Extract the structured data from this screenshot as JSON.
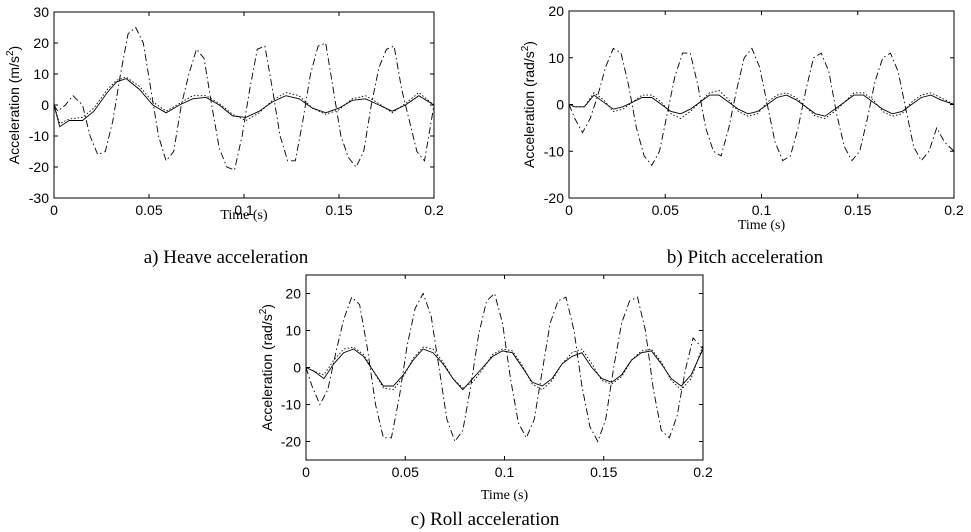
{
  "chart_data": [
    {
      "type": "line",
      "caption": "a) Heave acceleration",
      "xlabel": "Time (s)",
      "ylabel": "Acceleration (m/s",
      "ylabel_sup": "2",
      "ylabel_tail": ")",
      "xlim": [
        0,
        0.2
      ],
      "ylim": [
        -30,
        30
      ],
      "xticks": [
        0,
        0.05,
        0.1,
        0.15,
        0.2
      ],
      "xtick_labels": [
        "0",
        "0.05",
        "0.1",
        "0.15",
        "0.2"
      ],
      "yticks": [
        -30,
        -20,
        -10,
        0,
        10,
        20,
        30
      ],
      "ytick_labels": [
        "-30",
        "-20",
        "-10",
        "0",
        "10",
        "20",
        "30"
      ],
      "grid": false,
      "series": [
        {
          "style": "solid",
          "x": [
            0,
            0.003,
            0.008,
            0.015,
            0.021,
            0.028,
            0.033,
            0.038,
            0.045,
            0.052,
            0.059,
            0.066,
            0.073,
            0.08,
            0.087,
            0.094,
            0.101,
            0.108,
            0.115,
            0.122,
            0.129,
            0.136,
            0.143,
            0.15,
            0.157,
            0.164,
            0.171,
            0.178,
            0.185,
            0.192,
            0.2
          ],
          "y": [
            0,
            -7,
            -5,
            -5,
            -2,
            4,
            7.5,
            8.5,
            5,
            0,
            -2.5,
            0,
            2,
            2.5,
            0,
            -3.5,
            -4,
            -2,
            1,
            3,
            2,
            -1,
            -2.5,
            -1,
            1.5,
            2,
            0,
            -2,
            0,
            3,
            0
          ]
        },
        {
          "style": "dotted",
          "x": [
            0,
            0.003,
            0.008,
            0.015,
            0.021,
            0.028,
            0.033,
            0.038,
            0.045,
            0.052,
            0.059,
            0.066,
            0.073,
            0.08,
            0.087,
            0.094,
            0.101,
            0.108,
            0.115,
            0.122,
            0.129,
            0.136,
            0.143,
            0.15,
            0.157,
            0.164,
            0.171,
            0.178,
            0.185,
            0.192,
            0.2
          ],
          "y": [
            0,
            -6,
            -4.5,
            -4,
            -1,
            5,
            8,
            9,
            6,
            1,
            -2,
            0.5,
            3,
            3,
            0.5,
            -3,
            -5,
            -2.5,
            1.5,
            4,
            3,
            -1,
            -3,
            -1.5,
            2,
            3,
            0.5,
            -2.5,
            0.5,
            4,
            0
          ]
        },
        {
          "style": "dashdot",
          "x": [
            0,
            0.002,
            0.006,
            0.01,
            0.015,
            0.019,
            0.023,
            0.027,
            0.031,
            0.035,
            0.039,
            0.043,
            0.047,
            0.051,
            0.055,
            0.059,
            0.063,
            0.067,
            0.071,
            0.075,
            0.079,
            0.083,
            0.087,
            0.091,
            0.095,
            0.099,
            0.103,
            0.107,
            0.111,
            0.115,
            0.119,
            0.123,
            0.127,
            0.131,
            0.135,
            0.139,
            0.143,
            0.147,
            0.151,
            0.155,
            0.159,
            0.163,
            0.167,
            0.171,
            0.175,
            0.179,
            0.183,
            0.187,
            0.191,
            0.195,
            0.2
          ],
          "y": [
            0,
            -2,
            0,
            3,
            0,
            -10,
            -16,
            -15,
            -5,
            10,
            23,
            25,
            20,
            5,
            -10,
            -18,
            -15,
            0,
            10,
            18,
            15,
            0,
            -14,
            -20,
            -21,
            -10,
            5,
            18,
            19,
            5,
            -10,
            -18,
            -18,
            -5,
            10,
            19,
            20,
            5,
            -10,
            -17,
            -20,
            -15,
            0,
            12,
            18,
            19,
            5,
            -5,
            -15,
            -18,
            0
          ]
        }
      ]
    },
    {
      "type": "line",
      "caption": "b) Pitch acceleration",
      "xlabel": "Time (s)",
      "ylabel": "Acceleration (rad/s",
      "ylabel_sup": "2",
      "ylabel_tail": ")",
      "xlim": [
        0,
        0.2
      ],
      "ylim": [
        -20,
        20
      ],
      "xticks": [
        0,
        0.05,
        0.1,
        0.15,
        0.2
      ],
      "xtick_labels": [
        "0",
        "0.05",
        "0.1",
        "0.15",
        "0.2"
      ],
      "yticks": [
        -20,
        -10,
        0,
        10,
        20
      ],
      "ytick_labels": [
        "-20",
        "-10",
        "0",
        "10",
        "20"
      ],
      "grid": false,
      "series": [
        {
          "style": "solid",
          "x": [
            0,
            0.003,
            0.008,
            0.013,
            0.018,
            0.023,
            0.028,
            0.033,
            0.038,
            0.043,
            0.048,
            0.053,
            0.058,
            0.063,
            0.068,
            0.073,
            0.078,
            0.083,
            0.088,
            0.093,
            0.098,
            0.103,
            0.108,
            0.113,
            0.118,
            0.123,
            0.128,
            0.133,
            0.138,
            0.143,
            0.148,
            0.153,
            0.158,
            0.163,
            0.168,
            0.173,
            0.178,
            0.183,
            0.188,
            0.193,
            0.2
          ],
          "y": [
            0,
            -0.5,
            -0.5,
            2,
            0.5,
            -1,
            -0.5,
            0.5,
            1.5,
            1.5,
            0,
            -1.5,
            -2,
            -1,
            0.5,
            2,
            2,
            0.5,
            -1,
            -2,
            -1.5,
            0,
            1.5,
            2,
            1,
            -0.5,
            -2,
            -2.5,
            -1,
            0.5,
            2,
            2,
            0.5,
            -1,
            -2,
            -1.5,
            0,
            1.5,
            2,
            1,
            0
          ]
        },
        {
          "style": "dotted",
          "x": [
            0,
            0.003,
            0.008,
            0.013,
            0.018,
            0.023,
            0.028,
            0.033,
            0.038,
            0.043,
            0.048,
            0.053,
            0.058,
            0.063,
            0.068,
            0.073,
            0.078,
            0.083,
            0.088,
            0.093,
            0.098,
            0.103,
            0.108,
            0.113,
            0.118,
            0.123,
            0.128,
            0.133,
            0.138,
            0.143,
            0.148,
            0.153,
            0.158,
            0.163,
            0.168,
            0.173,
            0.178,
            0.183,
            0.188,
            0.193,
            0.2
          ],
          "y": [
            0,
            -0.5,
            -0.5,
            2.5,
            1,
            -1.5,
            -1,
            0.5,
            2,
            2,
            0.5,
            -2,
            -3,
            -1.5,
            0.5,
            2.5,
            3,
            1,
            -1.5,
            -2.5,
            -2,
            0.5,
            2,
            2.5,
            1.5,
            -0.5,
            -2.5,
            -3,
            -1.5,
            0.5,
            2.5,
            2.5,
            1,
            -1.5,
            -2.5,
            -2,
            0.5,
            2,
            2.5,
            1.5,
            0
          ]
        },
        {
          "style": "dashdot",
          "x": [
            0,
            0.003,
            0.007,
            0.011,
            0.015,
            0.019,
            0.023,
            0.027,
            0.031,
            0.035,
            0.039,
            0.043,
            0.047,
            0.051,
            0.055,
            0.059,
            0.063,
            0.067,
            0.071,
            0.075,
            0.079,
            0.083,
            0.087,
            0.091,
            0.095,
            0.099,
            0.103,
            0.107,
            0.111,
            0.115,
            0.119,
            0.123,
            0.127,
            0.131,
            0.135,
            0.139,
            0.143,
            0.147,
            0.151,
            0.155,
            0.159,
            0.163,
            0.167,
            0.171,
            0.175,
            0.179,
            0.183,
            0.187,
            0.191,
            0.195,
            0.2
          ],
          "y": [
            0,
            -3,
            -6,
            -3,
            2,
            8,
            12,
            11,
            4,
            -5,
            -11,
            -13,
            -10,
            -2,
            6,
            11,
            11,
            4,
            -5,
            -10,
            -11,
            -5,
            3,
            10,
            12,
            8,
            0,
            -8,
            -12,
            -11,
            -5,
            3,
            10,
            11,
            7,
            -2,
            -9,
            -12,
            -10,
            -3,
            5,
            10,
            11,
            7,
            -1,
            -9,
            -12,
            -10,
            -5,
            -8,
            -10
          ]
        }
      ]
    },
    {
      "type": "line",
      "caption": "c) Roll acceleration",
      "xlabel": "Time (s)",
      "ylabel": "Acceleration (rad/s",
      "ylabel_sup": "2",
      "ylabel_tail": ")",
      "xlim": [
        0,
        0.2
      ],
      "ylim": [
        -25,
        25
      ],
      "xticks": [
        0,
        0.05,
        0.1,
        0.15,
        0.2
      ],
      "xtick_labels": [
        "0",
        "0.05",
        "0.1",
        "0.15",
        "0.2"
      ],
      "yticks": [
        -20,
        -10,
        0,
        10,
        20
      ],
      "ytick_labels": [
        "-20",
        "-10",
        "0",
        "10",
        "20"
      ],
      "grid": false,
      "series": [
        {
          "style": "solid",
          "x": [
            0,
            0.004,
            0.009,
            0.014,
            0.019,
            0.024,
            0.029,
            0.034,
            0.039,
            0.044,
            0.049,
            0.054,
            0.059,
            0.064,
            0.069,
            0.074,
            0.079,
            0.084,
            0.089,
            0.094,
            0.099,
            0.104,
            0.109,
            0.114,
            0.119,
            0.124,
            0.129,
            0.134,
            0.139,
            0.144,
            0.149,
            0.154,
            0.159,
            0.164,
            0.169,
            0.174,
            0.179,
            0.184,
            0.189,
            0.194,
            0.2
          ],
          "y": [
            0,
            -1,
            -3,
            1,
            4,
            5,
            3,
            -1,
            -5,
            -5,
            -2,
            2,
            5,
            4,
            1,
            -3,
            -6,
            -3,
            0,
            3,
            4.5,
            4,
            0,
            -4,
            -5,
            -3,
            1,
            3,
            4,
            0,
            -3,
            -4,
            -2,
            2,
            4,
            4.5,
            1,
            -3,
            -5,
            -2,
            5
          ]
        },
        {
          "style": "dotted",
          "x": [
            0,
            0.004,
            0.009,
            0.014,
            0.019,
            0.024,
            0.029,
            0.034,
            0.039,
            0.044,
            0.049,
            0.054,
            0.059,
            0.064,
            0.069,
            0.074,
            0.079,
            0.084,
            0.089,
            0.094,
            0.099,
            0.104,
            0.109,
            0.114,
            0.119,
            0.124,
            0.129,
            0.134,
            0.139,
            0.144,
            0.149,
            0.154,
            0.159,
            0.164,
            0.169,
            0.174,
            0.179,
            0.184,
            0.189,
            0.194,
            0.2
          ],
          "y": [
            0,
            -1,
            -2,
            2,
            5,
            5.5,
            3.5,
            -1,
            -5.5,
            -6,
            -2.5,
            2.5,
            5.5,
            5,
            1.5,
            -3,
            -5.5,
            -4,
            -0.5,
            3.5,
            5,
            4.5,
            0.5,
            -4.5,
            -6,
            -3.5,
            1,
            4,
            5,
            1,
            -3.5,
            -4.5,
            -2.5,
            2,
            4.5,
            5,
            1.5,
            -3.5,
            -6,
            -3,
            6
          ]
        },
        {
          "style": "dashdot",
          "x": [
            0,
            0.003,
            0.007,
            0.011,
            0.015,
            0.019,
            0.023,
            0.027,
            0.031,
            0.035,
            0.039,
            0.043,
            0.047,
            0.051,
            0.055,
            0.059,
            0.063,
            0.067,
            0.071,
            0.075,
            0.079,
            0.083,
            0.087,
            0.091,
            0.095,
            0.099,
            0.103,
            0.107,
            0.111,
            0.115,
            0.119,
            0.123,
            0.127,
            0.131,
            0.135,
            0.139,
            0.143,
            0.147,
            0.151,
            0.155,
            0.159,
            0.163,
            0.167,
            0.171,
            0.175,
            0.179,
            0.183,
            0.187,
            0.191,
            0.195,
            0.2
          ],
          "y": [
            0,
            -5,
            -10,
            -6,
            4,
            13,
            19,
            17,
            5,
            -10,
            -19,
            -19,
            -8,
            6,
            16,
            20,
            14,
            0,
            -14,
            -20,
            -17,
            -5,
            9,
            18,
            20,
            12,
            -3,
            -15,
            -19,
            -14,
            -1,
            12,
            18,
            19,
            10,
            -5,
            -16,
            -20,
            -14,
            0,
            12,
            18,
            19,
            10,
            -6,
            -17,
            -19,
            -13,
            -1,
            8,
            5
          ]
        }
      ]
    }
  ]
}
